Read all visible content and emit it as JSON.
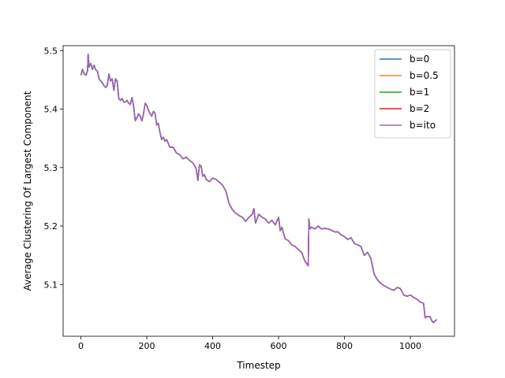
{
  "chart_data": {
    "type": "line",
    "title": "",
    "xlabel": "Timestep",
    "ylabel": "Average Clustering Of Largest Component",
    "xlim": [
      -54,
      1134
    ],
    "ylim": [
      5.0115,
      5.5085
    ],
    "xticks": [
      0,
      200,
      400,
      600,
      800,
      1000
    ],
    "yticks": [
      5.1,
      5.2,
      5.3,
      5.4,
      5.5
    ],
    "xtick_labels": [
      "0",
      "200",
      "400",
      "600",
      "800",
      "1000"
    ],
    "ytick_labels": [
      "5.1",
      "5.2",
      "5.3",
      "5.4",
      "5.5"
    ],
    "grid": false,
    "legend_position": "top-right",
    "series": [
      {
        "name": "b=0",
        "color": "#1f77b4"
      },
      {
        "name": "b=0.5",
        "color": "#ff7f0e"
      },
      {
        "name": "b=1",
        "color": "#2ca02c"
      },
      {
        "name": "b=2",
        "color": "#d62728"
      },
      {
        "name": "b=ito",
        "color": "#9467bd"
      }
    ],
    "x": [
      0,
      5,
      10,
      15,
      20,
      22,
      25,
      30,
      35,
      40,
      45,
      50,
      55,
      60,
      65,
      70,
      75,
      80,
      85,
      90,
      95,
      100,
      105,
      110,
      115,
      120,
      125,
      130,
      135,
      140,
      145,
      150,
      155,
      160,
      165,
      170,
      175,
      180,
      185,
      190,
      195,
      200,
      205,
      210,
      215,
      220,
      225,
      230,
      235,
      240,
      245,
      250,
      255,
      260,
      270,
      280,
      290,
      300,
      310,
      320,
      330,
      340,
      350,
      355,
      360,
      365,
      370,
      375,
      380,
      390,
      400,
      410,
      420,
      430,
      440,
      450,
      460,
      470,
      480,
      490,
      500,
      510,
      520,
      525,
      530,
      540,
      550,
      560,
      570,
      580,
      590,
      600,
      605,
      610,
      620,
      630,
      640,
      650,
      660,
      670,
      680,
      690,
      692,
      695,
      700,
      710,
      720,
      730,
      740,
      750,
      760,
      770,
      780,
      790,
      800,
      810,
      820,
      830,
      840,
      850,
      860,
      870,
      880,
      890,
      900,
      910,
      920,
      930,
      940,
      950,
      960,
      970,
      980,
      990,
      1000,
      1010,
      1020,
      1030,
      1040,
      1045,
      1050,
      1060,
      1065,
      1070,
      1080
    ],
    "y": [
      5.458,
      5.468,
      5.46,
      5.458,
      5.465,
      5.494,
      5.472,
      5.478,
      5.468,
      5.475,
      5.467,
      5.465,
      5.452,
      5.448,
      5.445,
      5.44,
      5.437,
      5.44,
      5.46,
      5.448,
      5.452,
      5.432,
      5.452,
      5.448,
      5.418,
      5.415,
      5.418,
      5.412,
      5.412,
      5.415,
      5.41,
      5.408,
      5.42,
      5.405,
      5.38,
      5.385,
      5.392,
      5.388,
      5.38,
      5.392,
      5.41,
      5.406,
      5.398,
      5.392,
      5.388,
      5.396,
      5.393,
      5.373,
      5.376,
      5.36,
      5.348,
      5.352,
      5.345,
      5.348,
      5.335,
      5.335,
      5.325,
      5.322,
      5.315,
      5.318,
      5.312,
      5.308,
      5.298,
      5.278,
      5.305,
      5.302,
      5.285,
      5.288,
      5.28,
      5.276,
      5.282,
      5.28,
      5.275,
      5.27,
      5.26,
      5.238,
      5.228,
      5.222,
      5.218,
      5.215,
      5.208,
      5.215,
      5.22,
      5.23,
      5.205,
      5.22,
      5.215,
      5.212,
      5.205,
      5.21,
      5.202,
      5.215,
      5.192,
      5.198,
      5.178,
      5.175,
      5.168,
      5.165,
      5.16,
      5.155,
      5.14,
      5.132,
      5.212,
      5.195,
      5.198,
      5.195,
      5.2,
      5.195,
      5.196,
      5.195,
      5.193,
      5.19,
      5.19,
      5.185,
      5.182,
      5.177,
      5.18,
      5.17,
      5.168,
      5.165,
      5.15,
      5.155,
      5.145,
      5.118,
      5.108,
      5.102,
      5.098,
      5.095,
      5.092,
      5.09,
      5.095,
      5.093,
      5.082,
      5.08,
      5.082,
      5.078,
      5.075,
      5.07,
      5.068,
      5.043,
      5.045,
      5.045,
      5.038,
      5.035,
      5.04
    ]
  }
}
